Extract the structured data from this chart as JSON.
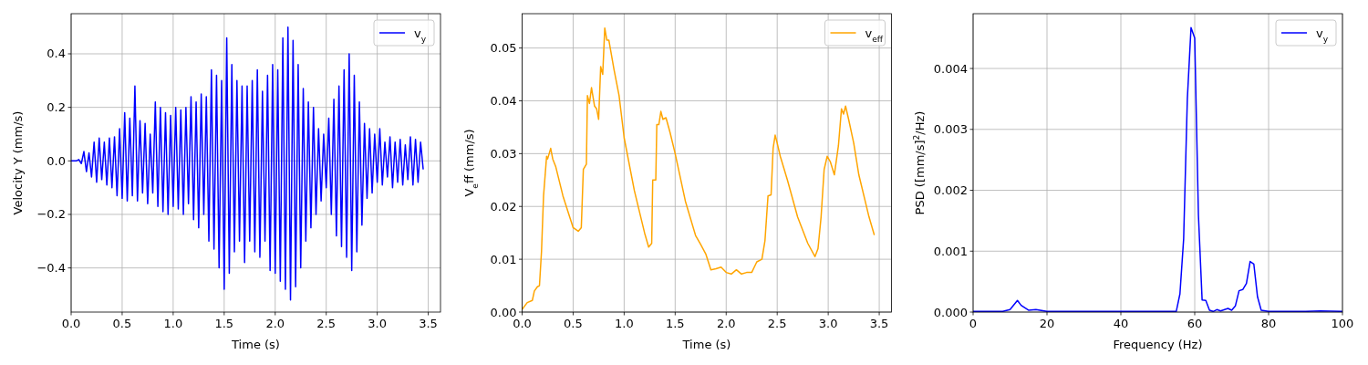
{
  "chart_data": [
    {
      "type": "line",
      "xlabel": "Time (s)",
      "ylabel": "Velocity Y (mm/s)",
      "xlim": [
        0,
        3.62
      ],
      "ylim": [
        -0.565,
        0.55
      ],
      "xticks": [
        {
          "value": 0,
          "label": "0.0"
        },
        {
          "value": 0.5,
          "label": "0.5"
        },
        {
          "value": 1,
          "label": "1.0"
        },
        {
          "value": 1.5,
          "label": "1.5"
        },
        {
          "value": 2,
          "label": "2.0"
        },
        {
          "value": 2.5,
          "label": "2.5"
        },
        {
          "value": 3,
          "label": "3.0"
        },
        {
          "value": 3.5,
          "label": "3.5"
        }
      ],
      "yticks": [
        {
          "value": -0.4,
          "label": "−0.4"
        },
        {
          "value": -0.2,
          "label": "−0.2"
        },
        {
          "value": 0,
          "label": "0.0"
        },
        {
          "value": 0.2,
          "label": "0.2"
        },
        {
          "value": 0.4,
          "label": "0.4"
        }
      ],
      "grid": true,
      "legend": "top right",
      "series": [
        {
          "name": "v$_{y}$",
          "color": "#0000ff",
          "x": [
            0,
            0.025,
            0.05,
            0.075,
            0.1,
            0.125,
            0.15,
            0.175,
            0.2,
            0.225,
            0.25,
            0.275,
            0.3,
            0.325,
            0.35,
            0.375,
            0.4,
            0.425,
            0.45,
            0.475,
            0.5,
            0.525,
            0.55,
            0.575,
            0.6,
            0.625,
            0.65,
            0.675,
            0.7,
            0.725,
            0.75,
            0.775,
            0.8,
            0.825,
            0.85,
            0.875,
            0.9,
            0.925,
            0.95,
            0.975,
            1.0,
            1.025,
            1.05,
            1.075,
            1.1,
            1.125,
            1.15,
            1.175,
            1.2,
            1.225,
            1.25,
            1.275,
            1.3,
            1.325,
            1.35,
            1.375,
            1.4,
            1.425,
            1.45,
            1.475,
            1.5,
            1.525,
            1.55,
            1.575,
            1.6,
            1.625,
            1.65,
            1.675,
            1.7,
            1.725,
            1.75,
            1.775,
            1.8,
            1.825,
            1.85,
            1.875,
            1.9,
            1.925,
            1.95,
            1.975,
            2.0,
            2.025,
            2.05,
            2.075,
            2.1,
            2.125,
            2.15,
            2.175,
            2.2,
            2.225,
            2.25,
            2.275,
            2.3,
            2.325,
            2.35,
            2.375,
            2.4,
            2.425,
            2.45,
            2.475,
            2.5,
            2.525,
            2.55,
            2.575,
            2.6,
            2.625,
            2.65,
            2.675,
            2.7,
            2.725,
            2.75,
            2.775,
            2.8,
            2.825,
            2.85,
            2.875,
            2.9,
            2.925,
            2.95,
            2.975,
            3.0,
            3.025,
            3.05,
            3.075,
            3.1,
            3.125,
            3.15,
            3.175,
            3.2,
            3.225,
            3.25,
            3.275,
            3.3,
            3.325,
            3.35,
            3.375,
            3.4,
            3.425,
            3.45
          ],
          "values": [
            0,
            0,
            0,
            0.005,
            -0.01,
            0.035,
            -0.04,
            0.03,
            -0.06,
            0.07,
            -0.08,
            0.085,
            -0.07,
            0.07,
            -0.09,
            0.085,
            -0.1,
            0.09,
            -0.13,
            0.12,
            -0.14,
            0.18,
            -0.15,
            0.16,
            -0.13,
            0.28,
            -0.15,
            0.15,
            -0.12,
            0.14,
            -0.16,
            0.1,
            -0.12,
            0.22,
            -0.17,
            0.2,
            -0.19,
            0.18,
            -0.2,
            0.17,
            -0.17,
            0.2,
            -0.18,
            0.19,
            -0.2,
            0.2,
            -0.16,
            0.24,
            -0.22,
            0.22,
            -0.25,
            0.25,
            -0.2,
            0.24,
            -0.3,
            0.34,
            -0.33,
            0.32,
            -0.4,
            0.3,
            -0.48,
            0.46,
            -0.42,
            0.36,
            -0.34,
            0.3,
            -0.3,
            0.28,
            -0.38,
            0.28,
            -0.3,
            0.3,
            -0.34,
            0.34,
            -0.36,
            0.26,
            -0.3,
            0.32,
            -0.41,
            0.36,
            -0.42,
            0.34,
            -0.45,
            0.46,
            -0.48,
            0.5,
            -0.52,
            0.45,
            -0.47,
            0.36,
            -0.4,
            0.27,
            -0.3,
            0.22,
            -0.25,
            0.2,
            -0.2,
            0.12,
            -0.15,
            0.1,
            -0.1,
            0.16,
            -0.2,
            0.23,
            -0.28,
            0.28,
            -0.32,
            0.34,
            -0.36,
            0.4,
            -0.41,
            0.32,
            -0.34,
            0.22,
            -0.24,
            0.14,
            -0.14,
            0.12,
            -0.12,
            0.1,
            -0.08,
            0.12,
            -0.09,
            0.07,
            -0.06,
            0.09,
            -0.1,
            0.07,
            -0.08,
            0.08,
            -0.09,
            0.06,
            -0.07,
            0.09,
            -0.09,
            0.08,
            -0.08,
            0.07,
            -0.03
          ]
        }
      ]
    },
    {
      "type": "line",
      "xlabel": "Time (s)",
      "ylabel": "V$_{e}$ff (mm/s)",
      "xlim": [
        0,
        3.62
      ],
      "ylim": [
        0,
        0.0565
      ],
      "xticks": [
        {
          "value": 0,
          "label": "0.0"
        },
        {
          "value": 0.5,
          "label": "0.5"
        },
        {
          "value": 1,
          "label": "1.0"
        },
        {
          "value": 1.5,
          "label": "1.5"
        },
        {
          "value": 2,
          "label": "2.0"
        },
        {
          "value": 2.5,
          "label": "2.5"
        },
        {
          "value": 3,
          "label": "3.0"
        },
        {
          "value": 3.5,
          "label": "3.5"
        }
      ],
      "yticks": [
        {
          "value": 0,
          "label": "0.00"
        },
        {
          "value": 0.01,
          "label": "0.01"
        },
        {
          "value": 0.02,
          "label": "0.02"
        },
        {
          "value": 0.03,
          "label": "0.03"
        },
        {
          "value": 0.04,
          "label": "0.04"
        },
        {
          "value": 0.05,
          "label": "0.05"
        }
      ],
      "grid": true,
      "legend": "top right",
      "series": [
        {
          "name": "v$_{eff}$",
          "color": "#ffa500",
          "x": [
            0,
            0.05,
            0.1,
            0.12,
            0.15,
            0.17,
            0.19,
            0.21,
            0.24,
            0.25,
            0.28,
            0.3,
            0.33,
            0.4,
            0.5,
            0.55,
            0.58,
            0.6,
            0.63,
            0.64,
            0.66,
            0.68,
            0.71,
            0.73,
            0.75,
            0.77,
            0.79,
            0.81,
            0.83,
            0.85,
            0.9,
            0.95,
            1.0,
            1.1,
            1.2,
            1.24,
            1.27,
            1.28,
            1.31,
            1.32,
            1.34,
            1.36,
            1.38,
            1.41,
            1.45,
            1.5,
            1.6,
            1.7,
            1.75,
            1.8,
            1.85,
            1.9,
            1.95,
            2.0,
            2.05,
            2.1,
            2.15,
            2.2,
            2.25,
            2.3,
            2.35,
            2.38,
            2.41,
            2.44,
            2.46,
            2.48,
            2.5,
            2.53,
            2.6,
            2.7,
            2.8,
            2.87,
            2.9,
            2.93,
            2.96,
            2.99,
            3.02,
            3.06,
            3.1,
            3.13,
            3.15,
            3.17,
            3.2,
            3.25,
            3.3,
            3.4,
            3.45
          ],
          "values": [
            0.0005,
            0.0018,
            0.0022,
            0.004,
            0.0048,
            0.005,
            0.0115,
            0.022,
            0.0295,
            0.029,
            0.031,
            0.029,
            0.0275,
            0.022,
            0.016,
            0.0153,
            0.016,
            0.027,
            0.028,
            0.041,
            0.0395,
            0.0425,
            0.039,
            0.0385,
            0.0365,
            0.0465,
            0.045,
            0.0538,
            0.0515,
            0.0515,
            0.046,
            0.041,
            0.033,
            0.023,
            0.015,
            0.0123,
            0.013,
            0.025,
            0.025,
            0.0355,
            0.0355,
            0.038,
            0.0365,
            0.0368,
            0.034,
            0.03,
            0.021,
            0.0145,
            0.0128,
            0.011,
            0.008,
            0.0082,
            0.0085,
            0.0075,
            0.0072,
            0.008,
            0.0072,
            0.0075,
            0.0075,
            0.0095,
            0.01,
            0.0135,
            0.022,
            0.0222,
            0.031,
            0.0335,
            0.032,
            0.0295,
            0.025,
            0.018,
            0.013,
            0.0105,
            0.012,
            0.018,
            0.027,
            0.0295,
            0.0285,
            0.026,
            0.0315,
            0.0385,
            0.0375,
            0.039,
            0.0365,
            0.032,
            0.026,
            0.018,
            0.0147
          ]
        }
      ]
    },
    {
      "type": "line",
      "xlabel": "Frequency (Hz)",
      "ylabel": "PSD ([mm/s]$^{2}$/Hz)",
      "xlim": [
        0,
        100
      ],
      "ylim": [
        0,
        0.0049
      ],
      "xticks": [
        0,
        20,
        40,
        60,
        80,
        100
      ],
      "yticks": [
        {
          "value": 0,
          "label": "0.000"
        },
        {
          "value": 0.001,
          "label": "0.001"
        },
        {
          "value": 0.002,
          "label": "0.002"
        },
        {
          "value": 0.003,
          "label": "0.003"
        },
        {
          "value": 0.004,
          "label": "0.004"
        }
      ],
      "grid": true,
      "legend": "top right",
      "series": [
        {
          "name": "v$_{y}$",
          "color": "#0000ff",
          "x": [
            0,
            5,
            8,
            10,
            12,
            13,
            15,
            17,
            20,
            30,
            40,
            50,
            55,
            56,
            57,
            58,
            59,
            60,
            61,
            62,
            63,
            64,
            65,
            66,
            67,
            69,
            70,
            71,
            72,
            73,
            74,
            75,
            76,
            77,
            78,
            80,
            90,
            94,
            100
          ],
          "values": [
            1e-05,
            1e-05,
            1e-05,
            4e-05,
            0.00019,
            0.00011,
            3e-05,
            4e-05,
            1e-05,
            1e-05,
            1e-05,
            1e-05,
            1e-05,
            0.0003,
            0.0012,
            0.0035,
            0.00467,
            0.0045,
            0.0016,
            0.0002,
            0.00019,
            3e-05,
            1e-05,
            4e-05,
            2e-05,
            6e-05,
            3e-05,
            0.0001,
            0.00035,
            0.00037,
            0.00047,
            0.00083,
            0.00079,
            0.00025,
            3e-05,
            1e-05,
            1e-05,
            2e-05,
            1e-05
          ]
        }
      ]
    }
  ]
}
